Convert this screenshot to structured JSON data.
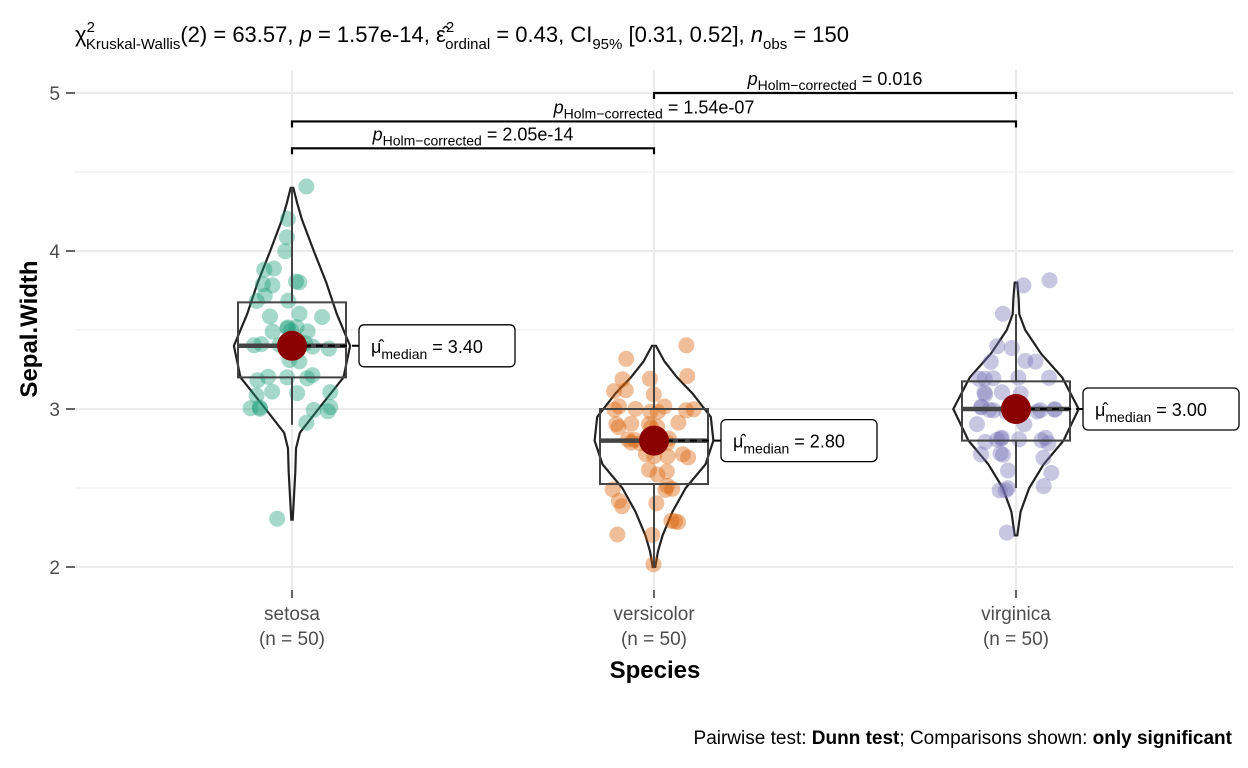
{
  "chart_data": {
    "type": "violin",
    "title": {
      "chi": "χ",
      "chi_sup": "2",
      "chi_sub": "Kruskal-Wallis",
      "df_and_stat": "(2) = 63.57, ",
      "p_label": "p",
      "p_value": " = 1.57e-14, ",
      "eps": "ε̂",
      "eps_sup": "2",
      "eps_sub": "ordinal",
      "eps_value": " = 0.43, CI",
      "ci_sub": "95%",
      "ci_value": " [0.31, 0.52], ",
      "n_label": "n",
      "n_sub": "obs",
      "n_value": " = 150"
    },
    "xlabel": "Species",
    "ylabel": "Sepal.Width",
    "ylim": [
      1.75,
      5.15
    ],
    "y_ticks": [
      2,
      3,
      4,
      5
    ],
    "grid": true,
    "categories": [
      "setosa",
      "versicolor",
      "virginica"
    ],
    "category_n": [
      "(n = 50)",
      "(n = 50)",
      "(n = 50)"
    ],
    "colors": [
      "#1B9E77",
      "#D95F02",
      "#7570B3"
    ],
    "median_point_color": "#8B0000",
    "groups": [
      {
        "name": "setosa",
        "median": 3.4,
        "q1": 3.2,
        "q3": 3.675,
        "whisker_low": 2.9,
        "whisker_high": 4.4,
        "median_label": "3.40",
        "violin": [
          [
            2.3,
            0.01
          ],
          [
            2.45,
            0.03
          ],
          [
            2.6,
            0.05
          ],
          [
            2.75,
            0.06
          ],
          [
            2.85,
            0.12
          ],
          [
            3.0,
            0.4
          ],
          [
            3.2,
            0.78
          ],
          [
            3.4,
            0.88
          ],
          [
            3.6,
            0.68
          ],
          [
            3.8,
            0.52
          ],
          [
            4.0,
            0.33
          ],
          [
            4.2,
            0.15
          ],
          [
            4.3,
            0.08
          ],
          [
            4.4,
            0.02
          ]
        ],
        "points": [
          3.5,
          3.0,
          3.2,
          3.1,
          3.6,
          3.9,
          3.4,
          3.4,
          2.9,
          3.1,
          3.7,
          3.4,
          3.0,
          3.0,
          4.0,
          4.4,
          3.9,
          3.5,
          3.8,
          3.8,
          3.4,
          3.7,
          3.6,
          3.3,
          3.4,
          3.0,
          3.4,
          3.5,
          3.4,
          3.2,
          3.1,
          3.4,
          4.1,
          4.2,
          3.1,
          3.2,
          3.5,
          3.6,
          3.0,
          3.4,
          3.5,
          2.3,
          3.2,
          3.5,
          3.8,
          3.0,
          3.8,
          3.2,
          3.7,
          3.3
        ]
      },
      {
        "name": "versicolor",
        "median": 2.8,
        "q1": 2.525,
        "q3": 3.0,
        "whisker_low": 2.0,
        "whisker_high": 3.4,
        "median_label": "2.80",
        "violin": [
          [
            2.0,
            0.02
          ],
          [
            2.1,
            0.06
          ],
          [
            2.2,
            0.13
          ],
          [
            2.35,
            0.28
          ],
          [
            2.5,
            0.48
          ],
          [
            2.65,
            0.78
          ],
          [
            2.8,
            0.9
          ],
          [
            2.95,
            0.86
          ],
          [
            3.1,
            0.58
          ],
          [
            3.2,
            0.35
          ],
          [
            3.3,
            0.16
          ],
          [
            3.4,
            0.03
          ]
        ],
        "points": [
          3.2,
          3.2,
          3.1,
          2.3,
          2.8,
          2.8,
          3.3,
          2.4,
          2.9,
          2.7,
          2.0,
          3.0,
          2.2,
          2.9,
          2.9,
          3.1,
          3.0,
          2.7,
          2.2,
          2.5,
          3.2,
          2.8,
          2.5,
          2.8,
          2.9,
          3.0,
          2.8,
          3.0,
          2.9,
          2.6,
          2.4,
          2.4,
          2.7,
          2.7,
          3.0,
          3.4,
          3.1,
          2.3,
          3.0,
          2.5,
          2.6,
          3.0,
          2.6,
          2.3,
          2.7,
          3.0,
          2.9,
          2.9,
          2.5,
          2.8
        ]
      },
      {
        "name": "virginica",
        "median": 3.0,
        "q1": 2.8,
        "q3": 3.175,
        "whisker_low": 2.5,
        "whisker_high": 3.6,
        "median_label": "3.00",
        "violin": [
          [
            2.2,
            0.02
          ],
          [
            2.35,
            0.07
          ],
          [
            2.5,
            0.2
          ],
          [
            2.65,
            0.42
          ],
          [
            2.8,
            0.72
          ],
          [
            3.0,
            0.95
          ],
          [
            3.2,
            0.7
          ],
          [
            3.35,
            0.38
          ],
          [
            3.5,
            0.14
          ],
          [
            3.6,
            0.05
          ],
          [
            3.7,
            0.04
          ],
          [
            3.8,
            0.02
          ]
        ],
        "points": [
          3.3,
          2.7,
          3.0,
          2.9,
          3.0,
          3.0,
          2.5,
          2.9,
          2.5,
          3.6,
          3.2,
          2.7,
          3.0,
          2.5,
          2.8,
          3.2,
          3.0,
          3.8,
          2.6,
          2.2,
          3.2,
          2.8,
          2.8,
          2.7,
          3.3,
          3.2,
          2.8,
          3.0,
          2.8,
          3.0,
          2.8,
          3.8,
          2.8,
          2.8,
          2.6,
          3.0,
          3.4,
          3.1,
          3.0,
          3.1,
          3.1,
          3.1,
          2.7,
          3.2,
          3.3,
          3.0,
          2.5,
          3.0,
          3.4,
          3.0
        ]
      }
    ],
    "comparisons": [
      {
        "from": 0,
        "to": 1,
        "y": 4.65,
        "label_value": " = 2.05e-14"
      },
      {
        "from": 0,
        "to": 2,
        "y": 4.82,
        "label_value": " = 1.54e-07"
      },
      {
        "from": 1,
        "to": 2,
        "y": 5.0,
        "label_value": " = 0.016"
      }
    ],
    "comparison_label": {
      "p": "p",
      "sub": "Holm−corrected"
    },
    "median_label_parts": {
      "mu": "μ̂",
      "sub": "median",
      "eq": " = "
    },
    "caption": {
      "part1": "Pairwise test: ",
      "bold1": "Dunn test",
      "part2": "; Comparisons shown: ",
      "bold2": "only significant"
    }
  }
}
